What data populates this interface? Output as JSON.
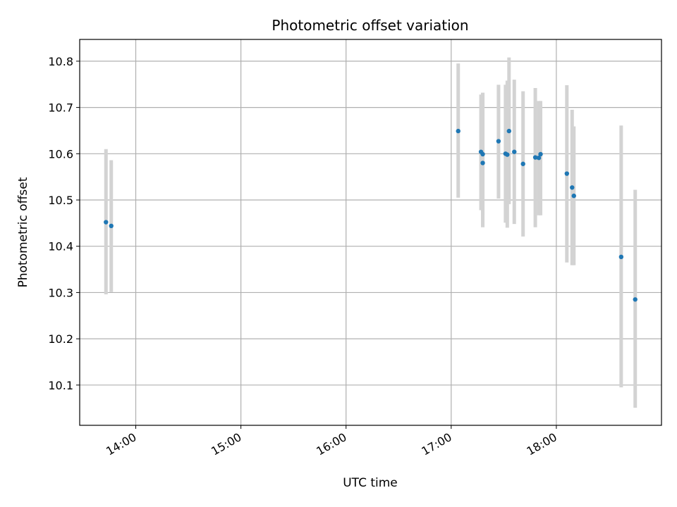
{
  "chart_data": {
    "type": "scatter",
    "title": "Photometric offset variation",
    "xlabel": "UTC time",
    "ylabel": "Photometric offset",
    "x_axis_kind": "time",
    "xlim": [
      "13:28",
      "19:00"
    ],
    "ylim": [
      10.013,
      10.847
    ],
    "grid": true,
    "legend": "none",
    "x_ticks": [
      "14:00",
      "15:00",
      "16:00",
      "17:00",
      "18:00"
    ],
    "y_ticks": [
      10.1,
      10.2,
      10.3,
      10.4,
      10.5,
      10.6,
      10.7,
      10.8
    ],
    "y_tick_labels": [
      "10.1",
      "10.2",
      "10.3",
      "10.4",
      "10.5",
      "10.6",
      "10.7",
      "10.8"
    ],
    "colors": {
      "point": "#1f77b4",
      "errorbar": "#d3d3d3",
      "grid": "#b0b0b0"
    },
    "series": [
      {
        "points": [
          {
            "x": "13:43",
            "y": 10.452,
            "ylo": 10.296,
            "yhi": 10.61
          },
          {
            "x": "13:46",
            "y": 10.444,
            "ylo": 10.301,
            "yhi": 10.586
          },
          {
            "x": "17:04",
            "y": 10.649,
            "ylo": 10.505,
            "yhi": 10.795
          },
          {
            "x": "17:17",
            "y": 10.604,
            "ylo": 10.478,
            "yhi": 10.728
          },
          {
            "x": "17:18",
            "y": 10.599,
            "ylo": 10.468,
            "yhi": 10.731
          },
          {
            "x": "17:18",
            "y": 10.58,
            "ylo": 10.441,
            "yhi": 10.732
          },
          {
            "x": "17:27",
            "y": 10.627,
            "ylo": 10.503,
            "yhi": 10.749
          },
          {
            "x": "17:31",
            "y": 10.6,
            "ylo": 10.451,
            "yhi": 10.749
          },
          {
            "x": "17:32",
            "y": 10.598,
            "ylo": 10.44,
            "yhi": 10.758
          },
          {
            "x": "17:33",
            "y": 10.649,
            "ylo": 10.491,
            "yhi": 10.808
          },
          {
            "x": "17:36",
            "y": 10.604,
            "ylo": 10.448,
            "yhi": 10.76
          },
          {
            "x": "17:41",
            "y": 10.578,
            "ylo": 10.421,
            "yhi": 10.735
          },
          {
            "x": "17:48",
            "y": 10.592,
            "ylo": 10.441,
            "yhi": 10.742
          },
          {
            "x": "17:50",
            "y": 10.591,
            "ylo": 10.467,
            "yhi": 10.714
          },
          {
            "x": "17:51",
            "y": 10.599,
            "ylo": 10.467,
            "yhi": 10.714
          },
          {
            "x": "18:06",
            "y": 10.557,
            "ylo": 10.365,
            "yhi": 10.748
          },
          {
            "x": "18:09",
            "y": 10.527,
            "ylo": 10.359,
            "yhi": 10.695
          },
          {
            "x": "18:10",
            "y": 10.509,
            "ylo": 10.359,
            "yhi": 10.659
          },
          {
            "x": "18:37",
            "y": 10.377,
            "ylo": 10.095,
            "yhi": 10.661
          },
          {
            "x": "18:45",
            "y": 10.285,
            "ylo": 10.051,
            "yhi": 10.522
          }
        ]
      }
    ]
  }
}
